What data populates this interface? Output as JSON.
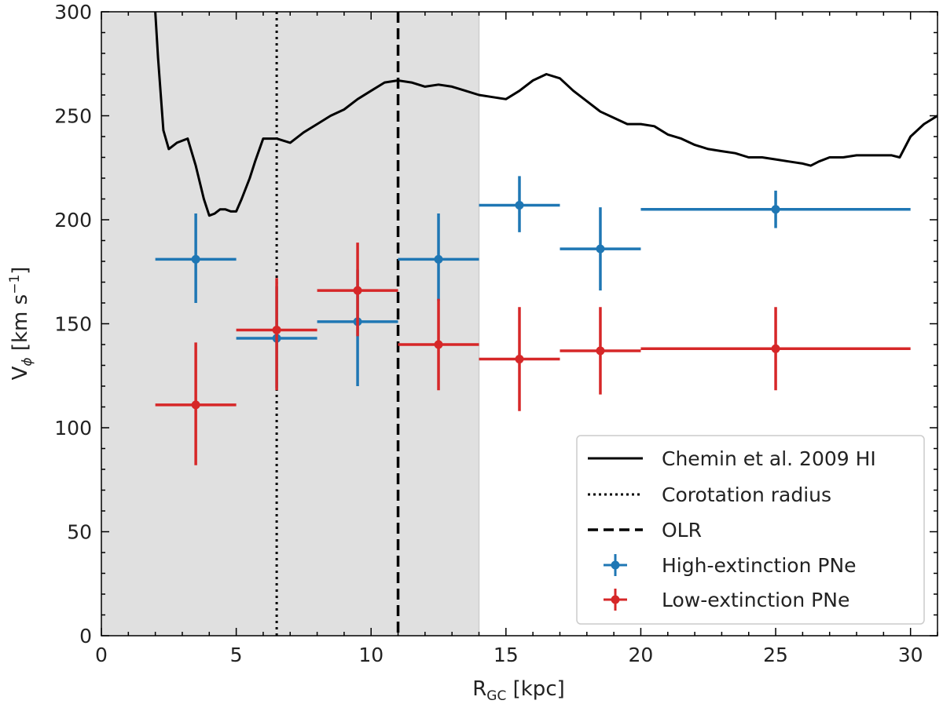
{
  "chart_data": {
    "type": "scatter",
    "xlabel_main": "R",
    "xlabel_sub": "GC",
    "xlabel_unit": " [kpc]",
    "ylabel_main": "V",
    "ylabel_sub": "ϕ",
    "ylabel_unit": " [km s",
    "ylabel_exp": "−1",
    "ylabel_close": "]",
    "xlim": [
      0,
      31
    ],
    "ylim": [
      0,
      300
    ],
    "x_ticks": [
      0,
      5,
      10,
      15,
      20,
      25,
      30
    ],
    "y_ticks": [
      0,
      50,
      100,
      150,
      200,
      250,
      300
    ],
    "x_tick_labels": [
      "0",
      "5",
      "10",
      "15",
      "20",
      "25",
      "30"
    ],
    "y_tick_labels": [
      "0",
      "50",
      "100",
      "150",
      "200",
      "250",
      "300"
    ],
    "shaded_region": {
      "x_start": 0,
      "x_end": 14
    },
    "corotation_radius": 6.5,
    "olr": 11,
    "colors": {
      "high": "#1f77b4",
      "low": "#d62728",
      "line": "#000000",
      "shade": "#e0e0e0"
    },
    "legend": {
      "position": "lower-right",
      "entries": [
        "Chemin et al. 2009 HI",
        "Corotation radius",
        "OLR",
        "High-extinction PNe",
        "Low-extinction PNe"
      ]
    },
    "chemin_curve": {
      "x": [
        2.0,
        2.1,
        2.3,
        2.5,
        2.8,
        3.2,
        3.5,
        3.8,
        4.0,
        4.2,
        4.4,
        4.6,
        4.8,
        5.0,
        5.2,
        5.5,
        5.7,
        6.0,
        6.5,
        7.0,
        7.5,
        8.0,
        8.5,
        9.0,
        9.5,
        10.0,
        10.5,
        11.0,
        11.5,
        12.0,
        12.5,
        13.0,
        13.5,
        14.0,
        14.5,
        15.0,
        15.5,
        16.0,
        16.5,
        17.0,
        17.5,
        18.0,
        18.5,
        19.0,
        19.5,
        20.0,
        20.5,
        21.0,
        21.5,
        22.0,
        22.5,
        23.0,
        23.5,
        24.0,
        24.5,
        25.0,
        25.5,
        26.0,
        26.3,
        26.6,
        27.0,
        27.5,
        28.0,
        28.5,
        29.0,
        29.3,
        29.6,
        30.0,
        30.5,
        31.0
      ],
      "y": [
        300,
        278,
        243,
        234,
        237,
        239,
        226,
        210,
        202,
        203,
        205,
        205,
        204,
        204,
        210,
        220,
        228,
        239,
        239,
        237,
        242,
        246,
        250,
        253,
        258,
        262,
        266,
        267,
        266,
        264,
        265,
        264,
        262,
        260,
        259,
        258,
        262,
        267,
        270,
        268,
        262,
        257,
        252,
        249,
        246,
        246,
        245,
        241,
        239,
        236,
        234,
        233,
        232,
        230,
        230,
        229,
        228,
        227,
        226,
        228,
        230,
        230,
        231,
        231,
        231,
        231,
        230,
        240,
        246,
        250
      ]
    },
    "series": [
      {
        "name": "High-extinction PNe",
        "color": "#1f77b4",
        "points": [
          {
            "x": 3.5,
            "y": 181,
            "xerr": 1.5,
            "yerr_low": 21,
            "yerr_high": 22
          },
          {
            "x": 6.5,
            "y": 143,
            "xerr": 1.5,
            "yerr_low": 24,
            "yerr_high": 25
          },
          {
            "x": 9.5,
            "y": 151,
            "xerr": 1.5,
            "yerr_low": 31,
            "yerr_high": 25
          },
          {
            "x": 12.5,
            "y": 181,
            "xerr": 1.5,
            "yerr_low": 20,
            "yerr_high": 22
          },
          {
            "x": 15.5,
            "y": 207,
            "xerr": 1.5,
            "yerr_low": 13,
            "yerr_high": 14
          },
          {
            "x": 18.5,
            "y": 186,
            "xerr": 1.5,
            "yerr_low": 20,
            "yerr_high": 20
          },
          {
            "x": 25.0,
            "y": 205,
            "xerr": 5.0,
            "yerr_low": 9,
            "yerr_high": 9
          }
        ]
      },
      {
        "name": "Low-extinction PNe",
        "color": "#d62728",
        "points": [
          {
            "x": 3.5,
            "y": 111,
            "xerr": 1.5,
            "yerr_low": 29,
            "yerr_high": 30
          },
          {
            "x": 6.5,
            "y": 147,
            "xerr": 1.5,
            "yerr_low": 29,
            "yerr_high": 25
          },
          {
            "x": 9.5,
            "y": 166,
            "xerr": 1.5,
            "yerr_low": 22,
            "yerr_high": 23
          },
          {
            "x": 12.5,
            "y": 140,
            "xerr": 1.5,
            "yerr_low": 22,
            "yerr_high": 22
          },
          {
            "x": 15.5,
            "y": 133,
            "xerr": 1.5,
            "yerr_low": 25,
            "yerr_high": 25
          },
          {
            "x": 18.5,
            "y": 137,
            "xerr": 1.5,
            "yerr_low": 21,
            "yerr_high": 21
          },
          {
            "x": 25.0,
            "y": 138,
            "xerr": 5.0,
            "yerr_low": 20,
            "yerr_high": 20
          }
        ]
      }
    ]
  }
}
